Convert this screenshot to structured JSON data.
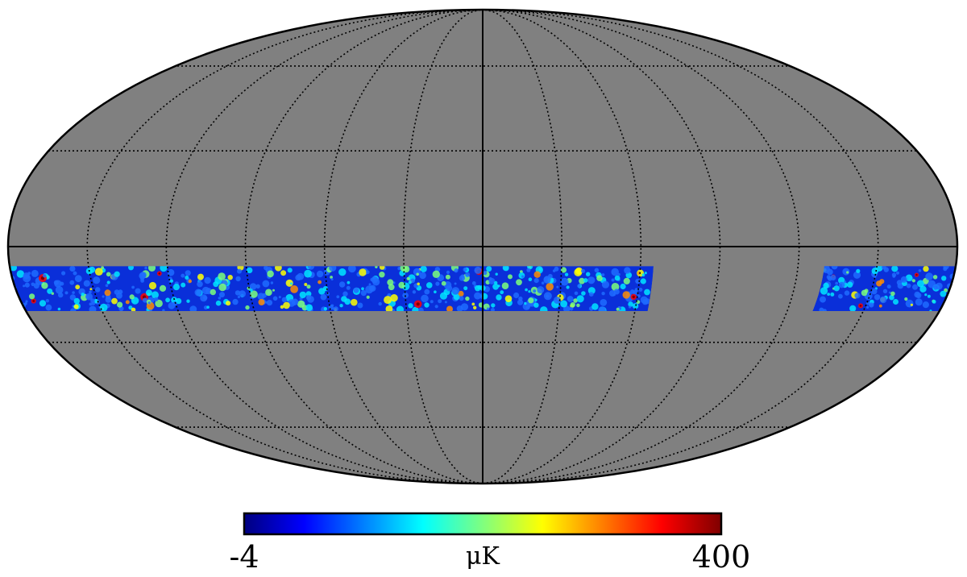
{
  "projection": "mollweide",
  "background_color": "#808080",
  "outline_color": "#000000",
  "graticule": {
    "style": "dotted",
    "color": "#000000",
    "latitudes_deg": [
      -60,
      -30,
      30,
      60
    ],
    "longitudes_deg": [
      -150,
      -120,
      -90,
      -60,
      -30,
      30,
      60,
      90,
      120,
      150
    ],
    "axis_lines": "solid"
  },
  "observed_strips": [
    {
      "name": "strip-main",
      "lat_range_deg": [
        -20,
        -6
      ],
      "lon_range_deg": [
        -180,
        65
      ]
    },
    {
      "name": "strip-right",
      "lat_range_deg": [
        -20,
        -6
      ],
      "lon_range_deg": [
        130,
        180
      ]
    }
  ],
  "strip_base_color": "#0a2fd9",
  "hotspot_colors": [
    "#00e5ff",
    "#7dff7a",
    "#ffff00",
    "#ff8c00",
    "#ff0000",
    "#800000"
  ],
  "colorbar": {
    "min_label": "-4",
    "max_label": "400",
    "unit_label": "μK",
    "colormap": "jet",
    "stops": [
      "#00007f",
      "#0000ff",
      "#007fff",
      "#00ffff",
      "#7fff7f",
      "#ffff00",
      "#ff7f00",
      "#ff0000",
      "#7f0000"
    ]
  }
}
